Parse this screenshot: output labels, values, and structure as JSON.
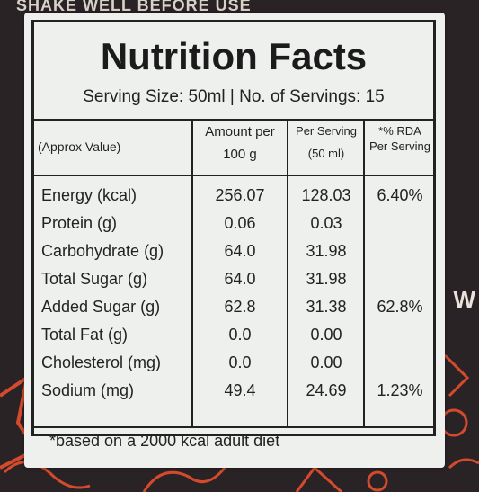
{
  "background": {
    "top_text": "SHAKE WELL BEFORE USE",
    "side_text": "W"
  },
  "label": {
    "title": "Nutrition Facts",
    "serving_line": "Serving Size: 50ml | No. of Servings: 15",
    "headers": {
      "nutrient": "(Approx Value)",
      "per100_line1": "Amount per",
      "per100_line2": "100 g",
      "perserving_line1": "Per Serving",
      "perserving_line2": "(50 ml)",
      "rda_line1": "*% RDA",
      "rda_line2": "Per Serving"
    },
    "rows": [
      {
        "name": "Energy (kcal)",
        "per100": "256.07",
        "serving": "128.03",
        "rda": "6.40%"
      },
      {
        "name": "Protein (g)",
        "per100": "0.06",
        "serving": "0.03",
        "rda": ""
      },
      {
        "name": "Carbohydrate (g)",
        "per100": "64.0",
        "serving": "31.98",
        "rda": ""
      },
      {
        "name": "Total Sugar (g)",
        "per100": "64.0",
        "serving": "31.98",
        "rda": ""
      },
      {
        "name": "Added Sugar (g)",
        "per100": "62.8",
        "serving": "31.38",
        "rda": "62.8%"
      },
      {
        "name": "Total Fat (g)",
        "per100": "0.0",
        "serving": "0.00",
        "rda": ""
      },
      {
        "name": "Cholesterol (mg)",
        "per100": "0.0",
        "serving": "0.00",
        "rda": ""
      },
      {
        "name": "Sodium (mg)",
        "per100": "49.4",
        "serving": "24.69",
        "rda": "1.23%"
      }
    ],
    "footnote": "*based on a 2000 kcal adult diet"
  },
  "colors": {
    "label_bg": "#eef0ee",
    "ink": "#222222",
    "package_bg": "#2a2326",
    "accent": "#d44a2c"
  }
}
